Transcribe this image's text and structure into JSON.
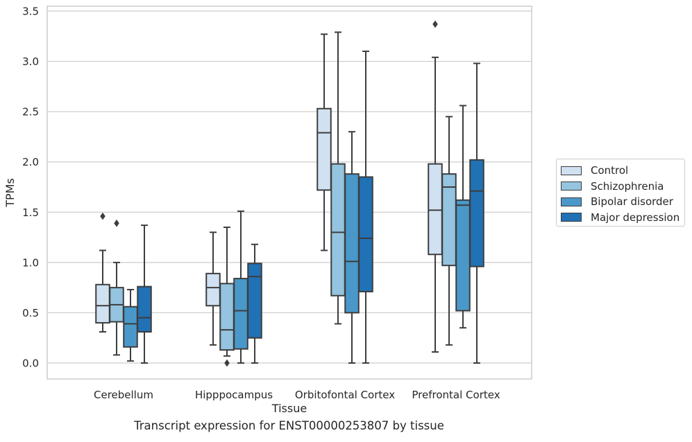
{
  "chart_data": {
    "type": "box",
    "xlabel": "Tissue",
    "ylabel": "TPMs",
    "caption": "Transcript expression for ENST00000253807 by tissue",
    "ylim": [
      -0.16,
      3.55
    ],
    "yticks": [
      "0.0",
      "0.5",
      "1.0",
      "1.5",
      "2.0",
      "2.5",
      "3.0",
      "3.5"
    ],
    "ytick_values": [
      0.0,
      0.5,
      1.0,
      1.5,
      2.0,
      2.5,
      3.0,
      3.5
    ],
    "grid": "horizontal",
    "legend_position": "right",
    "categories": [
      "Cerebellum",
      "Hipppocampus",
      "Orbitofontal Cortex",
      "Prefrontal Cortex"
    ],
    "series": [
      {
        "name": "Control",
        "color": "#d0e1f2",
        "boxes": [
          {
            "whisker_low": 0.31,
            "q1": 0.4,
            "median": 0.57,
            "q3": 0.78,
            "whisker_high": 1.12,
            "outliers": [
              1.46
            ]
          },
          {
            "whisker_low": 0.18,
            "q1": 0.57,
            "median": 0.75,
            "q3": 0.89,
            "whisker_high": 1.3,
            "outliers": []
          },
          {
            "whisker_low": 1.12,
            "q1": 1.72,
            "median": 2.29,
            "q3": 2.53,
            "whisker_high": 3.27,
            "outliers": []
          },
          {
            "whisker_low": 0.11,
            "q1": 1.08,
            "median": 1.52,
            "q3": 1.98,
            "whisker_high": 3.04,
            "outliers": [
              3.37
            ]
          }
        ]
      },
      {
        "name": "Schizophrenia",
        "color": "#94c4df",
        "boxes": [
          {
            "whisker_low": 0.08,
            "q1": 0.41,
            "median": 0.58,
            "q3": 0.75,
            "whisker_high": 1.0,
            "outliers": [
              1.39
            ]
          },
          {
            "whisker_low": 0.07,
            "q1": 0.13,
            "median": 0.33,
            "q3": 0.79,
            "whisker_high": 1.35,
            "outliers": [
              0.0
            ]
          },
          {
            "whisker_low": 0.39,
            "q1": 0.67,
            "median": 1.3,
            "q3": 1.98,
            "whisker_high": 3.29,
            "outliers": []
          },
          {
            "whisker_low": 0.18,
            "q1": 0.97,
            "median": 1.75,
            "q3": 1.88,
            "whisker_high": 2.45,
            "outliers": []
          }
        ]
      },
      {
        "name": "Bipolar disorder",
        "color": "#4a98c9",
        "boxes": [
          {
            "whisker_low": 0.02,
            "q1": 0.16,
            "median": 0.39,
            "q3": 0.56,
            "whisker_high": 0.73,
            "outliers": []
          },
          {
            "whisker_low": 0.0,
            "q1": 0.14,
            "median": 0.52,
            "q3": 0.84,
            "whisker_high": 1.51,
            "outliers": []
          },
          {
            "whisker_low": 0.0,
            "q1": 0.5,
            "median": 1.01,
            "q3": 1.88,
            "whisker_high": 2.3,
            "outliers": []
          },
          {
            "whisker_low": 0.35,
            "q1": 0.52,
            "median": 1.57,
            "q3": 1.62,
            "whisker_high": 2.56,
            "outliers": []
          }
        ]
      },
      {
        "name": "Major depression",
        "color": "#2171b5",
        "boxes": [
          {
            "whisker_low": 0.0,
            "q1": 0.31,
            "median": 0.45,
            "q3": 0.76,
            "whisker_high": 1.37,
            "outliers": []
          },
          {
            "whisker_low": 0.0,
            "q1": 0.25,
            "median": 0.86,
            "q3": 0.99,
            "whisker_high": 1.18,
            "outliers": []
          },
          {
            "whisker_low": 0.0,
            "q1": 0.71,
            "median": 1.24,
            "q3": 1.85,
            "whisker_high": 3.1,
            "outliers": []
          },
          {
            "whisker_low": 0.0,
            "q1": 0.96,
            "median": 1.71,
            "q3": 2.02,
            "whisker_high": 2.98,
            "outliers": []
          }
        ]
      }
    ]
  }
}
